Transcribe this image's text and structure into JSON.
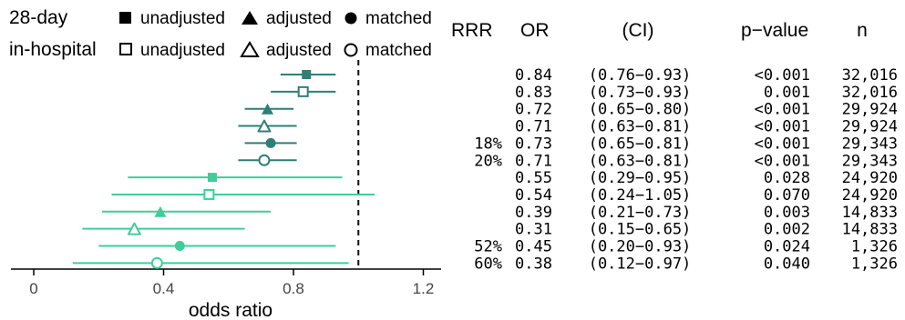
{
  "legend": {
    "row1_label": "28-day",
    "row2_label": "in-hospital",
    "items": [
      "unadjusted",
      "adjusted",
      "matched"
    ]
  },
  "table_headers": {
    "rrr": "RRR",
    "or": "OR",
    "ci": "(CI)",
    "p": "p−value",
    "n": "n"
  },
  "colors": {
    "dark_teal": "#2e7f76",
    "light_green": "#3ccf99",
    "refline": "#111111"
  },
  "chart_data": {
    "type": "forest",
    "xlabel": "odds ratio",
    "xlim": [
      -0.07,
      1.3
    ],
    "xticks": [
      0,
      0.4,
      0.8,
      1.2
    ],
    "xtick_labels": [
      "0",
      "0.4",
      "0.8",
      "1.2"
    ],
    "reference_line": 1.0,
    "rows": [
      {
        "group": "dark",
        "outcome": "28-day",
        "method": "unadjusted",
        "or": 0.84,
        "lo": 0.76,
        "hi": 0.93,
        "rrr": "",
        "or_text": "0.84",
        "ci_text": "(0.76−0.93)",
        "p_text": "<0.001",
        "n_text": "32,016"
      },
      {
        "group": "dark",
        "outcome": "in-hospital",
        "method": "unadjusted",
        "or": 0.83,
        "lo": 0.73,
        "hi": 0.93,
        "rrr": "",
        "or_text": "0.83",
        "ci_text": "(0.73−0.93)",
        "p_text": "0.001",
        "n_text": "32,016"
      },
      {
        "group": "dark",
        "outcome": "28-day",
        "method": "adjusted",
        "or": 0.72,
        "lo": 0.65,
        "hi": 0.8,
        "rrr": "",
        "or_text": "0.72",
        "ci_text": "(0.65−0.80)",
        "p_text": "<0.001",
        "n_text": "29,924"
      },
      {
        "group": "dark",
        "outcome": "in-hospital",
        "method": "adjusted",
        "or": 0.71,
        "lo": 0.63,
        "hi": 0.81,
        "rrr": "",
        "or_text": "0.71",
        "ci_text": "(0.63−0.81)",
        "p_text": "<0.001",
        "n_text": "29,924"
      },
      {
        "group": "dark",
        "outcome": "28-day",
        "method": "matched",
        "or": 0.73,
        "lo": 0.65,
        "hi": 0.81,
        "rrr": "18%",
        "or_text": "0.73",
        "ci_text": "(0.65−0.81)",
        "p_text": "<0.001",
        "n_text": "29,343"
      },
      {
        "group": "dark",
        "outcome": "in-hospital",
        "method": "matched",
        "or": 0.71,
        "lo": 0.63,
        "hi": 0.81,
        "rrr": "20%",
        "or_text": "0.71",
        "ci_text": "(0.63−0.81)",
        "p_text": "<0.001",
        "n_text": "29,343"
      },
      {
        "group": "light",
        "outcome": "28-day",
        "method": "unadjusted",
        "or": 0.55,
        "lo": 0.29,
        "hi": 0.95,
        "rrr": "",
        "or_text": "0.55",
        "ci_text": "(0.29−0.95)",
        "p_text": "0.028",
        "n_text": "24,920"
      },
      {
        "group": "light",
        "outcome": "in-hospital",
        "method": "unadjusted",
        "or": 0.54,
        "lo": 0.24,
        "hi": 1.05,
        "rrr": "",
        "or_text": "0.54",
        "ci_text": "(0.24−1.05)",
        "p_text": "0.070",
        "n_text": "24,920"
      },
      {
        "group": "light",
        "outcome": "28-day",
        "method": "adjusted",
        "or": 0.39,
        "lo": 0.21,
        "hi": 0.73,
        "rrr": "",
        "or_text": "0.39",
        "ci_text": "(0.21−0.73)",
        "p_text": "0.003",
        "n_text": "14,833"
      },
      {
        "group": "light",
        "outcome": "in-hospital",
        "method": "adjusted",
        "or": 0.31,
        "lo": 0.15,
        "hi": 0.65,
        "rrr": "",
        "or_text": "0.31",
        "ci_text": "(0.15−0.65)",
        "p_text": "0.002",
        "n_text": "14,833"
      },
      {
        "group": "light",
        "outcome": "28-day",
        "method": "matched",
        "or": 0.45,
        "lo": 0.2,
        "hi": 0.93,
        "rrr": "52%",
        "or_text": "0.45",
        "ci_text": "(0.20−0.93)",
        "p_text": "0.024",
        "n_text": "1,326"
      },
      {
        "group": "light",
        "outcome": "in-hospital",
        "method": "matched",
        "or": 0.38,
        "lo": 0.12,
        "hi": 0.97,
        "rrr": "60%",
        "or_text": "0.38",
        "ci_text": "(0.12−0.97)",
        "p_text": "0.040",
        "n_text": "1,326"
      }
    ]
  }
}
